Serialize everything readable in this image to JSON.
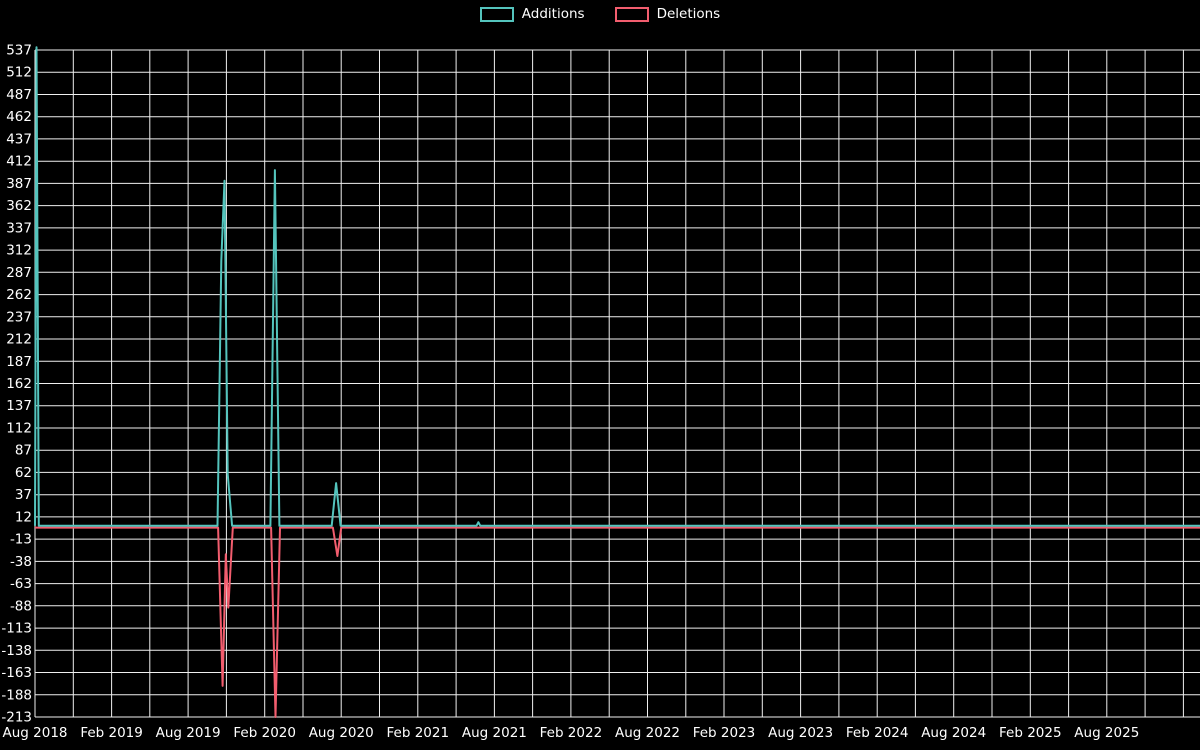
{
  "page": {
    "background": "#000000",
    "text_color": "#ffffff"
  },
  "legend": [
    {
      "label": "Additions",
      "color": "#54c4bd"
    },
    {
      "label": "Deletions",
      "color": "#f25d6e"
    }
  ],
  "chart_data": {
    "type": "line",
    "title": "",
    "xlabel": "",
    "ylabel": "",
    "background": "#000000",
    "grid_color": "#f0f0f0",
    "grid": "on",
    "legend_position": "top-center",
    "x_axis": {
      "unit": "months since Aug 2018",
      "tick_step_months": 3,
      "label_step_months": 6,
      "grid_months_max": 90,
      "labels": [
        "Aug 2018",
        "Feb 2019",
        "Aug 2019",
        "Feb 2020",
        "Aug 2020",
        "Feb 2021",
        "Aug 2021",
        "Feb 2022",
        "Aug 2022",
        "Feb 2023",
        "Aug 2023",
        "Feb 2024",
        "Aug 2024",
        "Feb 2025",
        "Aug 2025"
      ]
    },
    "y_axis": {
      "min": -213,
      "max": 537,
      "tick_step": 25,
      "tick_labels": [
        537,
        512,
        487,
        462,
        437,
        412,
        387,
        362,
        337,
        312,
        287,
        262,
        237,
        212,
        187,
        162,
        137,
        112,
        87,
        62,
        37,
        12,
        -13,
        -38,
        -63,
        -88,
        -113,
        -138,
        -163,
        -188,
        -213
      ]
    },
    "series": [
      {
        "name": "Additions",
        "color": "#54c4bd",
        "points": [
          [
            0,
            2
          ],
          [
            0.12,
            540
          ],
          [
            0.3,
            2
          ],
          [
            14.3,
            2
          ],
          [
            14.6,
            300
          ],
          [
            14.85,
            390
          ],
          [
            15.1,
            60
          ],
          [
            15.45,
            2
          ],
          [
            18.45,
            2
          ],
          [
            18.8,
            402
          ],
          [
            19.15,
            2
          ],
          [
            23.25,
            2
          ],
          [
            23.6,
            50
          ],
          [
            23.95,
            2
          ],
          [
            34.6,
            2
          ],
          [
            34.75,
            6
          ],
          [
            34.9,
            2
          ],
          [
            91.3,
            2
          ]
        ]
      },
      {
        "name": "Deletions",
        "color": "#f25d6e",
        "points": [
          [
            0,
            0
          ],
          [
            14.35,
            0
          ],
          [
            14.7,
            -178
          ],
          [
            14.95,
            -30
          ],
          [
            15.15,
            -90
          ],
          [
            15.5,
            0
          ],
          [
            18.5,
            0
          ],
          [
            18.85,
            -213
          ],
          [
            19.2,
            0
          ],
          [
            23.35,
            0
          ],
          [
            23.7,
            -32
          ],
          [
            24.0,
            0
          ],
          [
            91.3,
            0
          ]
        ]
      }
    ]
  }
}
